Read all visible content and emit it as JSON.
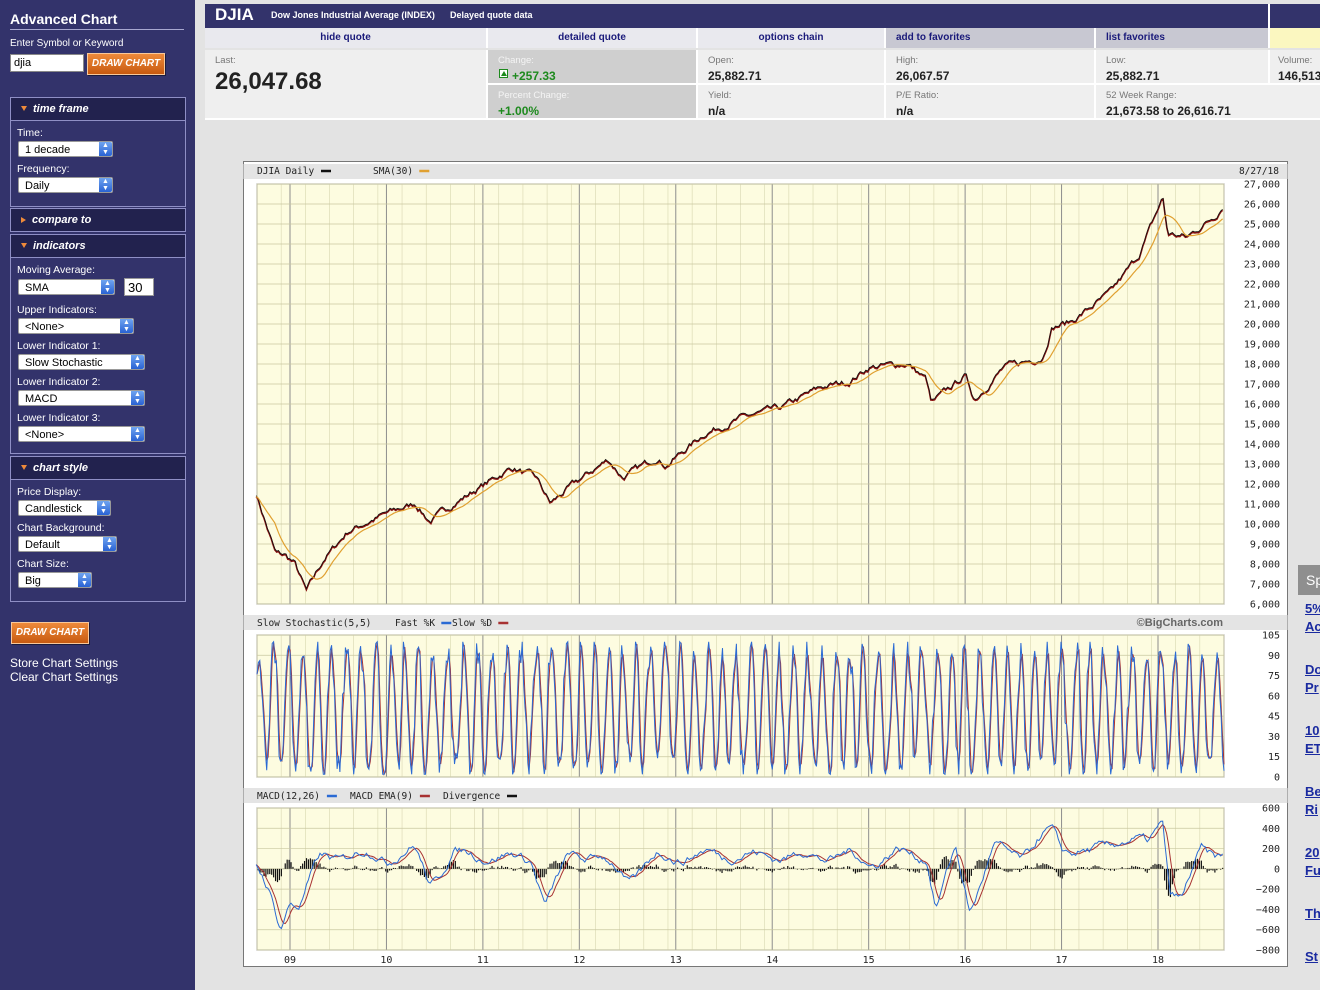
{
  "sidebar": {
    "title": "Advanced Chart",
    "symbol_label": "Enter Symbol or Keyword",
    "symbol_value": "djia",
    "draw_chart_label": "DRAW CHART",
    "time_frame": {
      "header": "time frame",
      "time_label": "Time:",
      "time_value": "1 decade",
      "frequency_label": "Frequency:",
      "frequency_value": "Daily"
    },
    "compare_to": {
      "header": "compare to"
    },
    "indicators": {
      "header": "indicators",
      "moving_average_label": "Moving Average:",
      "moving_average_value": "SMA",
      "moving_average_period": "30",
      "upper_label": "Upper Indicators:",
      "upper_value": "<None>",
      "lower1_label": "Lower Indicator 1:",
      "lower1_value": "Slow Stochastic",
      "lower2_label": "Lower Indicator 2:",
      "lower2_value": "MACD",
      "lower3_label": "Lower Indicator 3:",
      "lower3_value": "<None>"
    },
    "chart_style": {
      "header": "chart style",
      "price_label": "Price Display:",
      "price_value": "Candlestick",
      "background_label": "Chart Background:",
      "background_value": "Default",
      "size_label": "Chart Size:",
      "size_value": "Big"
    },
    "store_settings": "Store Chart Settings",
    "clear_settings": "Clear Chart Settings"
  },
  "quote": {
    "symbol": "DJIA",
    "name": "Dow Jones Industrial Average (INDEX)",
    "delay": "Delayed quote data",
    "tabs": [
      "hide quote",
      "detailed quote",
      "options chain",
      "add to favorites",
      "list favorites"
    ],
    "last_label": "Last:",
    "last_value": "26,047.68",
    "change_label": "Change:",
    "change_value": "+257.33",
    "pct_change_label": "Percent Change:",
    "pct_change_value": "+1.00%",
    "open_label": "Open:",
    "open_value": "25,882.71",
    "yield_label": "Yield:",
    "yield_value": "n/a",
    "high_label": "High:",
    "high_value": "26,067.57",
    "pe_label": "P/E Ratio:",
    "pe_value": "n/a",
    "low_label": "Low:",
    "low_value": "25,882.71",
    "range_label": "52 Week Range:",
    "range_value": "21,673.58 to 26,616.71",
    "volume_label": "Volume:",
    "volume_value": "146,513"
  },
  "chart_data": {
    "type": "line",
    "date_label": "8/27/18",
    "watermark": "©BigCharts.com",
    "x_ticks": [
      "09",
      "10",
      "11",
      "12",
      "13",
      "14",
      "15",
      "16",
      "17",
      "18"
    ],
    "price": {
      "legend": [
        "DJIA Daily",
        "SMA(30)"
      ],
      "ylim": [
        6000,
        27000
      ],
      "y_ticks": [
        "27,000",
        "26,000",
        "25,000",
        "24,000",
        "23,000",
        "22,000",
        "21,000",
        "20,000",
        "19,000",
        "18,000",
        "17,000",
        "16,000",
        "15,000",
        "14,000",
        "13,000",
        "12,000",
        "11,000",
        "10,000",
        "9,000",
        "8,000",
        "7,000",
        "6,000"
      ],
      "x": [
        2008.65,
        2008.75,
        2008.85,
        2008.95,
        2009.05,
        2009.17,
        2009.35,
        2009.6,
        2010.0,
        2010.3,
        2010.45,
        2010.7,
        2011.0,
        2011.3,
        2011.55,
        2011.7,
        2011.95,
        2012.3,
        2012.45,
        2012.8,
        2012.9,
        2013.3,
        2013.7,
        2014.1,
        2014.5,
        2014.8,
        2015.0,
        2015.4,
        2015.6,
        2015.65,
        2016.0,
        2016.1,
        2016.4,
        2016.8,
        2016.9,
        2017.1,
        2017.5,
        2017.8,
        2018.05,
        2018.1,
        2018.3,
        2018.6,
        2018.67
      ],
      "y": [
        11500,
        10000,
        8500,
        8400,
        8000,
        6600,
        8200,
        9600,
        10500,
        11000,
        10100,
        11000,
        11900,
        12800,
        12300,
        11000,
        12000,
        13200,
        12300,
        13300,
        12900,
        14500,
        15300,
        15800,
        16800,
        17100,
        17800,
        18000,
        17200,
        16000,
        17400,
        16200,
        17800,
        18300,
        19800,
        20100,
        21500,
        23400,
        26300,
        24500,
        24300,
        25400,
        25900
      ]
    },
    "stochastic": {
      "legend": [
        "Slow Stochastic(5,5)",
        "Fast %K",
        "Slow %D"
      ],
      "ylim": [
        0,
        105
      ],
      "y_ticks": [
        "105",
        "90",
        "75",
        "60",
        "45",
        "30",
        "15",
        "0"
      ]
    },
    "macd": {
      "legend": [
        "MACD(12,26)",
        "MACD EMA(9)",
        "Divergence"
      ],
      "ylim": [
        -800,
        600
      ],
      "y_ticks": [
        "600",
        "400",
        "200",
        "0",
        "−200",
        "−400",
        "−600",
        "−800"
      ],
      "x": [
        2008.65,
        2008.8,
        2008.9,
        2009.0,
        2009.1,
        2009.3,
        2009.6,
        2010.0,
        2010.3,
        2010.45,
        2010.7,
        2011.0,
        2011.5,
        2011.65,
        2011.9,
        2012.2,
        2012.5,
        2012.8,
        2013.0,
        2013.4,
        2013.7,
        2014.0,
        2014.5,
        2014.8,
        2015.0,
        2015.3,
        2015.6,
        2015.7,
        2015.9,
        2016.05,
        2016.3,
        2016.6,
        2016.9,
        2017.0,
        2017.3,
        2017.6,
        2017.9,
        2018.05,
        2018.12,
        2018.25,
        2018.45,
        2018.67
      ],
      "y": [
        50,
        -300,
        -600,
        -300,
        -350,
        100,
        150,
        100,
        180,
        -150,
        150,
        120,
        100,
        -350,
        150,
        120,
        -100,
        120,
        100,
        150,
        120,
        130,
        120,
        140,
        50,
        160,
        120,
        -400,
        200,
        -400,
        200,
        150,
        380,
        220,
        150,
        300,
        250,
        500,
        -200,
        -300,
        200,
        150
      ]
    }
  },
  "promo": {
    "header": "Sp",
    "items": [
      "5%",
      "Ac",
      "Do",
      "Pr",
      "10",
      "ET",
      "Be",
      "Ri",
      "20",
      "Fu",
      "Th",
      "St"
    ]
  }
}
